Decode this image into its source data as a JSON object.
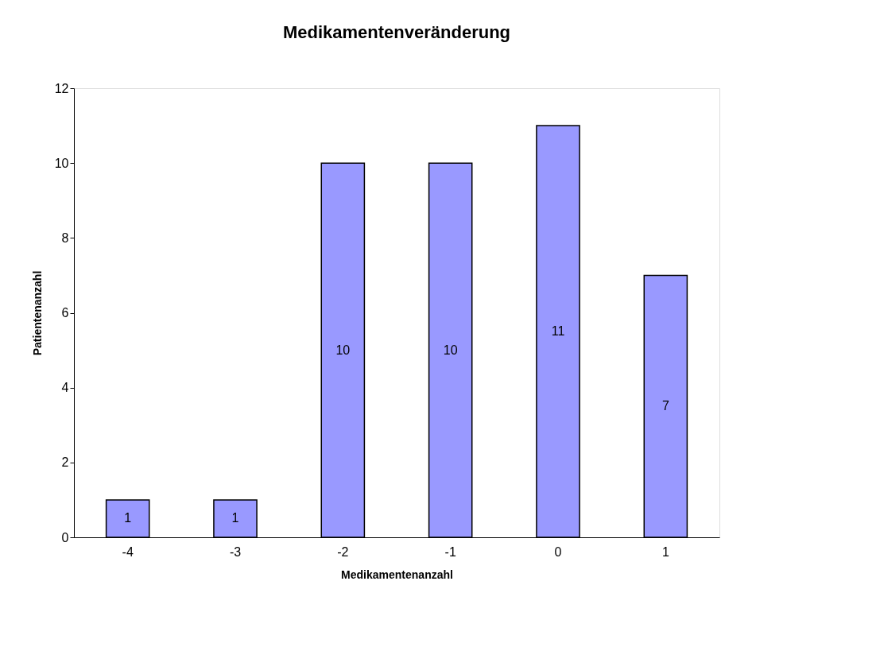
{
  "chart_data": {
    "type": "bar",
    "title": "Medikamentenveränderung",
    "xlabel": "Medikamentenanzahl",
    "ylabel": "Patientenanzahl",
    "categories": [
      "-4",
      "-3",
      "-2",
      "-1",
      "0",
      "1"
    ],
    "values": [
      1,
      1,
      10,
      10,
      11,
      7
    ],
    "color": "#9999ff",
    "ylim": [
      0,
      12
    ],
    "yticks": [
      0,
      2,
      4,
      6,
      8,
      10,
      12
    ],
    "grid": false,
    "data_labels": true
  }
}
